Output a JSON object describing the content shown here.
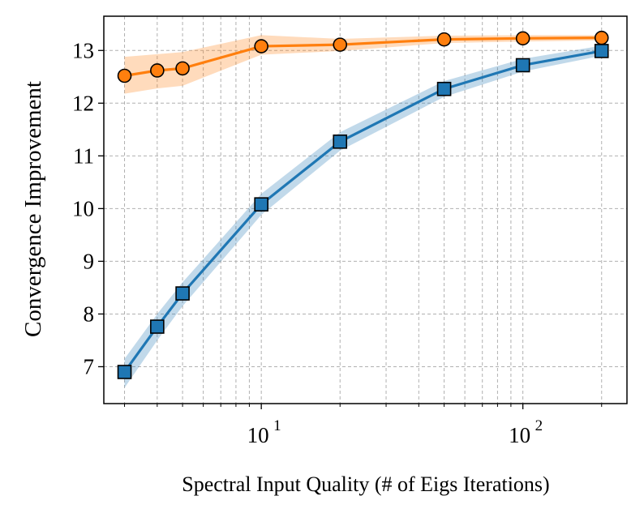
{
  "chart_data": {
    "type": "line",
    "xscale": "log",
    "xlabel": "Spectral Input Quality (# of Eigs Iterations)",
    "ylabel": "Convergence Improvement",
    "xlim": [
      2.5,
      250
    ],
    "ylim": [
      6.3,
      13.65
    ],
    "yticks": [
      7,
      8,
      9,
      10,
      11,
      12,
      13
    ],
    "ytick_labels": [
      "7",
      "8",
      "9",
      "10",
      "11",
      "12",
      "13"
    ],
    "xticks": [
      10,
      100
    ],
    "xtick_labels": [
      {
        "base": "10",
        "exp": "1"
      },
      {
        "base": "10",
        "exp": "2"
      }
    ],
    "grid": true,
    "x": [
      3,
      4,
      5,
      10,
      20,
      50,
      100,
      200
    ],
    "series": [
      {
        "name": "orange",
        "color": "#ff7f0e",
        "marker": "circle",
        "values": [
          12.52,
          12.62,
          12.66,
          13.08,
          13.11,
          13.21,
          13.23,
          13.24
        ],
        "lower": [
          12.18,
          12.28,
          12.33,
          12.92,
          12.99,
          13.14,
          13.17,
          13.19
        ],
        "upper": [
          12.88,
          12.93,
          12.97,
          13.29,
          13.22,
          13.28,
          13.29,
          13.29
        ]
      },
      {
        "name": "blue",
        "color": "#1f77b4",
        "marker": "square",
        "values": [
          6.9,
          7.76,
          8.39,
          10.08,
          11.27,
          12.27,
          12.72,
          12.99
        ],
        "lower": [
          6.6,
          7.5,
          8.15,
          9.88,
          11.1,
          12.12,
          12.6,
          12.9
        ],
        "upper": [
          7.15,
          8.0,
          8.6,
          10.28,
          11.45,
          12.42,
          12.84,
          13.09
        ]
      }
    ]
  }
}
